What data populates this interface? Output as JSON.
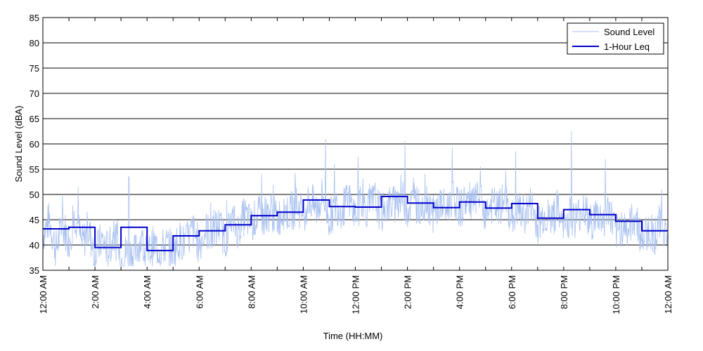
{
  "chart_data": {
    "type": "line",
    "title": "",
    "xlabel": "Time (HH:MM)",
    "ylabel": "Sound Level (dBA)",
    "ylim": [
      35,
      85
    ],
    "yticks": [
      35,
      40,
      45,
      50,
      55,
      60,
      65,
      70,
      75,
      80,
      85
    ],
    "xlim_hours": [
      0,
      24
    ],
    "xticks": [
      {
        "hour": 0,
        "label": "12:00 AM"
      },
      {
        "hour": 2,
        "label": "2:00 AM"
      },
      {
        "hour": 4,
        "label": "4:00 AM"
      },
      {
        "hour": 6,
        "label": "6:00 AM"
      },
      {
        "hour": 8,
        "label": "8:00 AM"
      },
      {
        "hour": 10,
        "label": "10:00 AM"
      },
      {
        "hour": 12,
        "label": "12:00 PM"
      },
      {
        "hour": 14,
        "label": "2:00 PM"
      },
      {
        "hour": 16,
        "label": "4:00 PM"
      },
      {
        "hour": 18,
        "label": "6:00 PM"
      },
      {
        "hour": 20,
        "label": "8:00 PM"
      },
      {
        "hour": 22,
        "label": "10:00 PM"
      },
      {
        "hour": 24,
        "label": "12:00 AM"
      }
    ],
    "grid": "horizontal",
    "legend_position": "top-right",
    "colors": {
      "sound_level": "#a8c0f0",
      "leq": "#0000cc",
      "grid": "#000000"
    },
    "series": [
      {
        "name": "Sound Level",
        "style": "thin-noisy",
        "x": [
          0,
          0.25,
          0.5,
          0.75,
          1.0,
          1.25,
          1.5,
          1.75,
          2.0,
          2.25,
          2.5,
          2.75,
          3.0,
          3.25,
          3.5,
          3.75,
          4.0,
          4.25,
          4.5,
          4.75,
          5.0,
          5.25,
          5.5,
          5.75,
          6.0,
          6.25,
          6.5,
          6.75,
          7.0,
          7.25,
          7.5,
          7.75,
          8.0,
          8.25,
          8.5,
          8.75,
          9.0,
          9.25,
          9.5,
          9.75,
          10.0,
          10.25,
          10.5,
          10.75,
          11.0,
          11.25,
          11.5,
          11.75,
          12.0,
          12.25,
          12.5,
          12.75,
          13.0,
          13.25,
          13.5,
          13.75,
          14.0,
          14.25,
          14.5,
          14.75,
          15.0,
          15.25,
          15.5,
          15.75,
          16.0,
          16.25,
          16.5,
          16.75,
          17.0,
          17.25,
          17.5,
          17.75,
          18.0,
          18.25,
          18.5,
          18.75,
          19.0,
          19.25,
          19.5,
          19.75,
          20.0,
          20.25,
          20.5,
          20.75,
          21.0,
          21.25,
          21.5,
          21.75,
          22.0,
          22.25,
          22.5,
          22.75,
          23.0,
          23.25,
          23.5,
          23.75,
          24.0
        ],
        "values": [
          42,
          45,
          39,
          44,
          41,
          46,
          40,
          43,
          38,
          41,
          39,
          42,
          37,
          39,
          38,
          41,
          38,
          40,
          39,
          40,
          39,
          41,
          40,
          43,
          40,
          43,
          42,
          44,
          41,
          45,
          43,
          46,
          44,
          46,
          45,
          47,
          45,
          47,
          46,
          48,
          46,
          49,
          47,
          50,
          45,
          48,
          47,
          49,
          46,
          48,
          47,
          49,
          46,
          48,
          48,
          50,
          47,
          49,
          47,
          49,
          46,
          48,
          47,
          50,
          47,
          49,
          48,
          49,
          46,
          48,
          47,
          49,
          45,
          47,
          46,
          48,
          44,
          46,
          45,
          47,
          43,
          46,
          45,
          48,
          44,
          46,
          45,
          47,
          42,
          44,
          43,
          46,
          41,
          43,
          42,
          45,
          41
        ],
        "peaks": [
          {
            "x": 1.35,
            "y": 51.5
          },
          {
            "x": 3.3,
            "y": 53.5
          },
          {
            "x": 10.85,
            "y": 61
          },
          {
            "x": 11.2,
            "y": 56
          },
          {
            "x": 12.1,
            "y": 57.5
          },
          {
            "x": 13.9,
            "y": 60.5
          },
          {
            "x": 18.15,
            "y": 58.5
          },
          {
            "x": 20.3,
            "y": 62.5
          },
          {
            "x": 21.6,
            "y": 57
          },
          {
            "x": 8.4,
            "y": 54
          },
          {
            "x": 9.7,
            "y": 52
          },
          {
            "x": 16.8,
            "y": 55.5
          }
        ]
      },
      {
        "name": "1-Hour Leq",
        "style": "step",
        "hours": [
          0,
          1,
          2,
          3,
          4,
          5,
          6,
          7,
          8,
          9,
          10,
          11,
          12,
          13,
          14,
          15,
          16,
          17,
          18,
          19,
          20,
          21,
          22,
          23
        ],
        "values": [
          43.2,
          43.5,
          39.5,
          43.5,
          38.9,
          41.8,
          42.8,
          44.0,
          45.8,
          46.5,
          48.9,
          47.6,
          47.5,
          49.6,
          48.3,
          47.4,
          48.5,
          47.3,
          48.2,
          45.3,
          47.0,
          46.0,
          44.7,
          42.8
        ]
      }
    ]
  }
}
